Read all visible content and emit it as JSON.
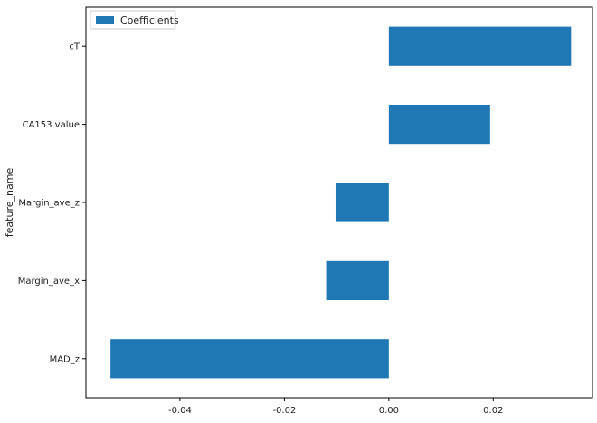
{
  "chart_data": {
    "type": "bar",
    "orientation": "horizontal",
    "categories": [
      "MAD_z",
      "Margin_ave_x",
      "Margin_ave_z",
      "CA153 value",
      "cT"
    ],
    "series": [
      {
        "name": "Coefficients",
        "values": [
          -0.0533,
          -0.012,
          -0.0102,
          0.0194,
          0.0349
        ]
      }
    ],
    "xlabel": "",
    "ylabel": "feature_name",
    "xlim": [
      -0.058,
      0.039
    ],
    "xticks": [
      -0.04,
      -0.02,
      0.0,
      0.02
    ],
    "xtick_labels": [
      "-0.04",
      "-0.02",
      "0.00",
      "0.02"
    ],
    "grid": false,
    "legend": "top-left",
    "colors": {
      "bar": "#1f77b4"
    }
  }
}
